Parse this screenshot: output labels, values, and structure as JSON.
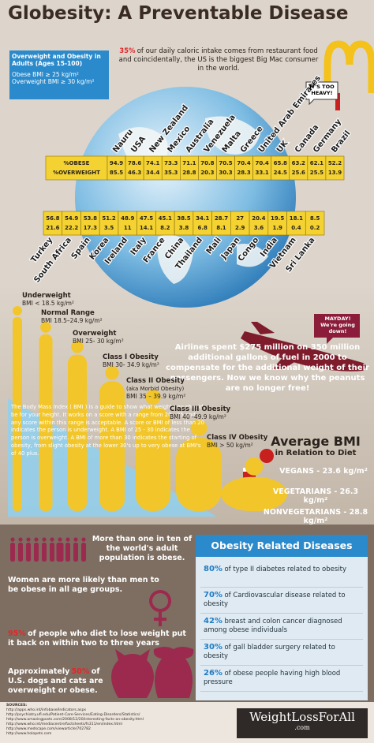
{
  "title": "Globesity: A Preventable Disease",
  "legend_box": {
    "heading": "Overweight and Obesity in Adults (Ages 15-100)",
    "lines": [
      "Obese BMI ≥ 25 kg/m²",
      "Overweight BMI ≥ 30 kg/m²"
    ]
  },
  "intro": {
    "highlight": "35%",
    "text": "of our daily caloric intake comes from restaurant food and coincidentally, the US is the biggest Big Mac consumer in the world."
  },
  "speech_top": "IT'S TOO HEAVY!",
  "tape": {
    "row_labels": [
      "%OBESE",
      "%OVERWEIGHT"
    ],
    "upper": [
      {
        "country": "Nauru",
        "obese": 94.9,
        "overweight": 85.5
      },
      {
        "country": "USA",
        "obese": 78.6,
        "overweight": 46.3
      },
      {
        "country": "New Zealand",
        "obese": 74.1,
        "overweight": 34.4
      },
      {
        "country": "Mexico",
        "obese": 73.3,
        "overweight": 35.3
      },
      {
        "country": "Australia",
        "obese": 71.1,
        "overweight": 28.8
      },
      {
        "country": "Venezuela",
        "obese": 70.8,
        "overweight": 20.3
      },
      {
        "country": "Malta",
        "obese": 70.5,
        "overweight": 30.3
      },
      {
        "country": "Greece",
        "obese": 70.4,
        "overweight": 28.3
      },
      {
        "country": "United Arab Emirates",
        "obese": 70.4,
        "overweight": 33.1
      },
      {
        "country": "UK",
        "obese": 65.8,
        "overweight": 24.5
      },
      {
        "country": "Canada",
        "obese": 63.2,
        "overweight": 25.6
      },
      {
        "country": "Germany",
        "obese": 62.1,
        "overweight": 25.5
      },
      {
        "country": "Brazil",
        "obese": 52.2,
        "overweight": 13.9
      }
    ],
    "lower": [
      {
        "country": "Turkey",
        "obese": 56.8,
        "overweight": 21.6
      },
      {
        "country": "South Africa",
        "obese": 54.9,
        "overweight": 22.2
      },
      {
        "country": "Spain",
        "obese": 53.8,
        "overweight": 17.3
      },
      {
        "country": "Korea",
        "obese": 51.2,
        "overweight": 3.5
      },
      {
        "country": "Ireland",
        "obese": 48.9,
        "overweight": 11
      },
      {
        "country": "Italy",
        "obese": 47.5,
        "overweight": 14.1
      },
      {
        "country": "France",
        "obese": 45.1,
        "overweight": 8.2
      },
      {
        "country": "China",
        "obese": 38.5,
        "overweight": 3.8
      },
      {
        "country": "Thailand",
        "obese": 34.1,
        "overweight": 6.8
      },
      {
        "country": "Mali",
        "obese": 28.7,
        "overweight": 8.1
      },
      {
        "country": "Japan",
        "obese": 27,
        "overweight": 2.9
      },
      {
        "country": "Congo",
        "obese": 20.4,
        "overweight": 3.6
      },
      {
        "country": "India",
        "obese": 19.5,
        "overweight": 1.9
      },
      {
        "country": "Vietnam",
        "obese": 18.1,
        "overweight": 0.4
      },
      {
        "country": "Sri Lanka",
        "obese": 8.5,
        "overweight": 0.2
      }
    ]
  },
  "bmi_classes": [
    {
      "name": "Underweight",
      "range": "BMI < 18.5 kg/m²"
    },
    {
      "name": "Normal Range",
      "range": "BMI 18.5–24.9 kg/m²"
    },
    {
      "name": "Overweight",
      "range": "BMI 25- 30 kg/m²"
    },
    {
      "name": "Class I Obesity",
      "range": "BMI 30- 34.9 kg/m²"
    },
    {
      "name": "Class II Obesity",
      "note": "(aka Morbid Obesity)",
      "range": "BMI 35 – 39.9 kg/m²"
    },
    {
      "name": "Class III Obesity",
      "range": "BMI 40 -49.9 kg/m²"
    },
    {
      "name": "Class IV Obesity",
      "range": "BMI > 50 kg/m²"
    }
  ],
  "bmi_info": "The Body Mass Index ( BMI ) is a guide to show what weight you should be for your height. It works on a score with a range from 20 - 25 and any score within this range is acceptable. A score or BMI of less than 20 indicates the person is underweight. A BMI of 25 - 30 indicates the person is overweight. A BMI of more than 30 indicates the starting of obesity, from slight obesity at the lower 30's up to very obese at BMI's of 40 plus.",
  "mayday": [
    "MAYDAY!",
    "We're going down!"
  ],
  "airlines": "Airlines spent $275 million on 350 million additional gallons of fuel in 2000 to compensate for the additional weight of their passengers. Now we know why the peanuts are no longer free!",
  "diet": {
    "title": "Average BMI",
    "subtitle": "in Relation to Diet",
    "items": [
      "VEGANS - 23.6 kg/m²",
      "VEGETARIANS - 26.3 kg/m²",
      "NONVEGETARIANS - 28.8 kg/m²"
    ]
  },
  "facts": {
    "one_in_ten": "More than one in ten of the world's adult population is obese.",
    "women": "Women are more likely than men to be obese in all age groups.",
    "diet_regain": {
      "highlight": "95%",
      "text": "of people who diet to lose weight put it back on within two to three years"
    },
    "pets": {
      "before": "Approximately",
      "highlight": "50%",
      "text": "of U.S. dogs and cats are overweight or obese."
    }
  },
  "diseases": {
    "title": "Obesity Related Diseases",
    "items": [
      {
        "highlight": "80%",
        "text": "of type II diabetes related to obesity"
      },
      {
        "highlight": "70%",
        "text": "of Cardiovascular disease related to obesity"
      },
      {
        "highlight": "42%",
        "text": "breast and colon cancer diagnosed among obese individuals"
      },
      {
        "highlight": "30%",
        "text": "of gall bladder surgery related to obesity"
      },
      {
        "highlight": "26%",
        "text": "of obese people having high blood pressure"
      }
    ]
  },
  "sources": {
    "heading": "SOURCES:",
    "urls": [
      "http://apps.who.int/infobase/Indicators.aspx",
      "http://psychiatry.ufl.edu/Patient-Care-Services/Eating-Disorders/Statistics/",
      "http://www.amazingposts.com/2008/12/20/interesting-facts-on-obesity.html",
      "http://www.who.int/mediacentre/factsheets/fs311/en/index.html",
      "http://www.medscape.com/viewarticle/702782",
      "http://www.holopets.com"
    ]
  },
  "logo": {
    "name": "WeightLossForAll",
    "domain": ".com"
  }
}
